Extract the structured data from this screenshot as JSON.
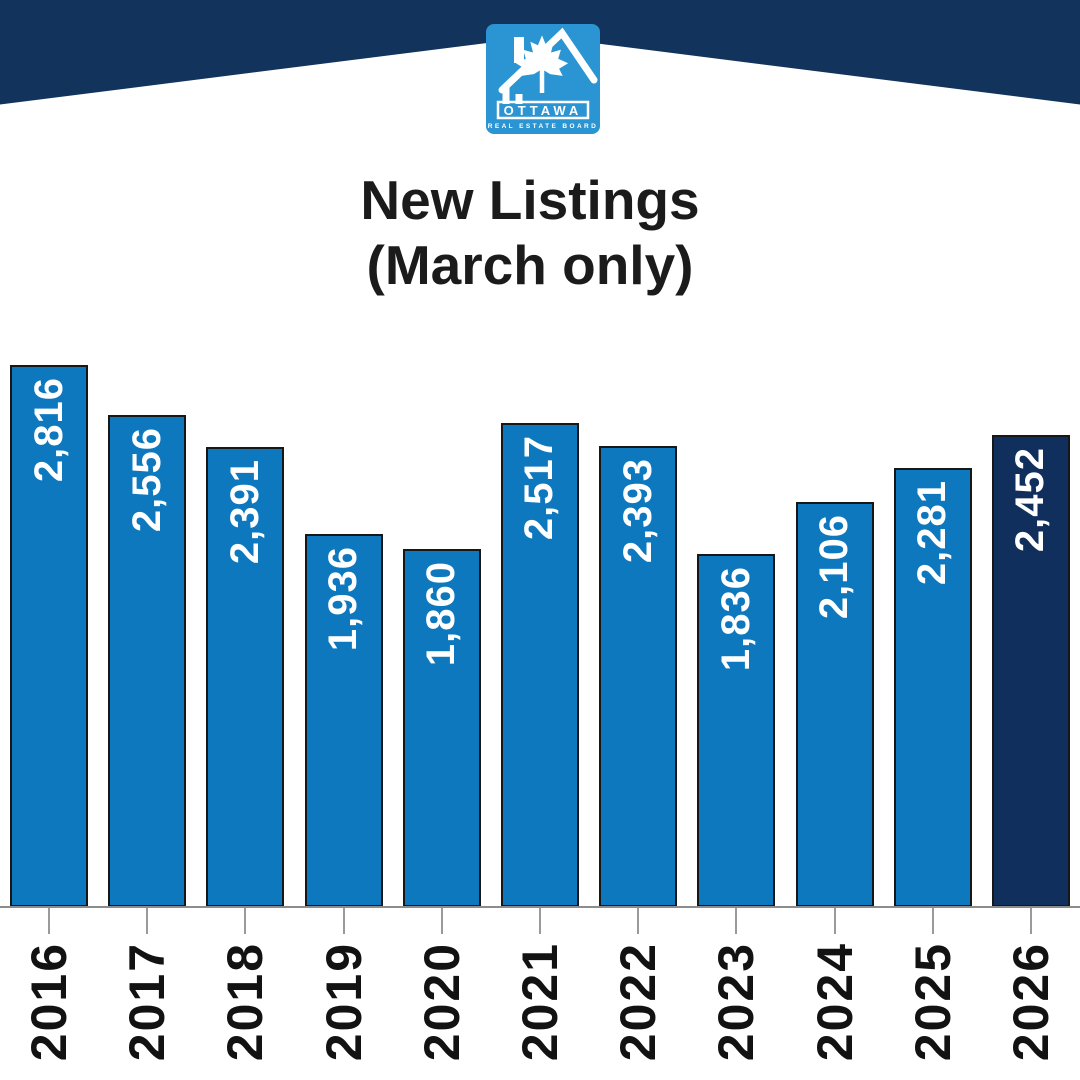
{
  "header": {
    "banner_color": "#12335B",
    "logo": {
      "org_name": "OTTAWA",
      "org_subtitle": "REAL ESTATE BOARD",
      "background_color": "#2B94D2",
      "glyph_color": "#FFFFFF"
    }
  },
  "title": {
    "line1": "New Listings",
    "line2": "(March only)"
  },
  "chart_data": {
    "type": "bar",
    "title": "New Listings (March only)",
    "categories": [
      "2016",
      "2017",
      "2018",
      "2019",
      "2020",
      "2021",
      "2022",
      "2023",
      "2024",
      "2025",
      "2026"
    ],
    "values": [
      2816,
      2556,
      2391,
      1936,
      1860,
      2517,
      2393,
      1836,
      2106,
      2281,
      2452
    ],
    "value_labels": [
      "2,816",
      "2,556",
      "2,391",
      "1,936",
      "1,860",
      "2,517",
      "2,393",
      "1,836",
      "2,106",
      "2,281",
      "2,452"
    ],
    "xlabel": "",
    "ylabel": "",
    "ylim": [
      0,
      2816
    ],
    "grid": false,
    "legend": false,
    "bar_color": "#0D78BE",
    "highlight_bar_color": "#112F5C",
    "highlight_index": 10,
    "bar_border_color": "#171717",
    "value_label_color": "#FFFFFF",
    "axis_color": "#8C8C8C",
    "tick_color": "#9A9A9A",
    "category_label_color": "#121212",
    "value_labels_rotated": true,
    "category_labels_rotated": true
  }
}
